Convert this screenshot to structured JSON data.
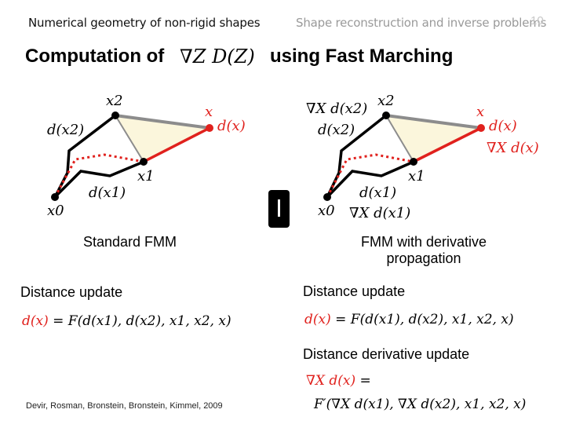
{
  "header": {
    "course_title": "Numerical geometry of non-rigid shapes",
    "lecture_title": "Shape reconstruction and inverse problems",
    "slide_number": "10"
  },
  "title": {
    "prefix": "Computation of",
    "math": "∇Z D(Z)",
    "suffix": "using Fast Marching"
  },
  "left_diagram": {
    "labels": {
      "x2": "x2",
      "x": "x",
      "d_x2": "d(x2)",
      "d_x": "d(x)",
      "x1": "x1",
      "d_x1": "d(x1)",
      "x0": "x0"
    },
    "caption": "Standard FMM"
  },
  "right_diagram": {
    "labels": {
      "grad_d_x2": "∇X d(x2)",
      "x2": "x2",
      "d_x2": "d(x2)",
      "x": "x",
      "d_x": "d(x)",
      "grad_d_x": "∇X d(x)",
      "x1": "x1",
      "d_x1": "d(x1)",
      "x0": "x0",
      "grad_d_x1": "∇X d(x1)"
    },
    "caption_line1": "FMM with derivative",
    "caption_line2": "propagation"
  },
  "left_section": {
    "heading": "Distance update",
    "formula_lhs": "d(x)",
    "formula_rhs": "= F(d(x1), d(x2), x1, x2, x)"
  },
  "right_section": {
    "heading": "Distance update",
    "formula_lhs": "d(x)",
    "formula_rhs": "= F(d(x1), d(x2), x1, x2, x)",
    "derivative_heading": "Distance derivative update",
    "derivative_lhs": "∇X d(x)",
    "derivative_eq": "=",
    "derivative_rhs": "F′(∇X d(x1), ∇X d(x2), x1, x2, x)"
  },
  "citation": "Devir, Rosman, Bronstein, Bronstein, Kimmel, 2009",
  "colors": {
    "front_red": "#e0211d",
    "triangle_fill": "#fbf6dc",
    "edge_gray": "#8c8c8c",
    "path_black": "#000000"
  }
}
